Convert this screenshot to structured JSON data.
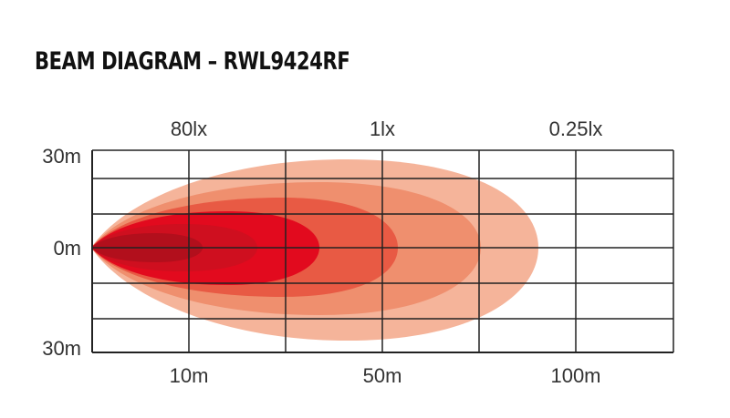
{
  "title": "BEAM DIAGRAM – RWL9424RF",
  "lux_labels": [
    "80lx",
    "1lx",
    "0.25lx"
  ],
  "distance_labels": [
    "10m",
    "50m",
    "100m"
  ],
  "width_labels": [
    "30m",
    "0m",
    "30m"
  ],
  "beam_colors": [
    "#f5b49a",
    "#ef8f6e",
    "#e85a44",
    "#e20a1e",
    "#cf0f1f",
    "#b20f1c"
  ]
}
